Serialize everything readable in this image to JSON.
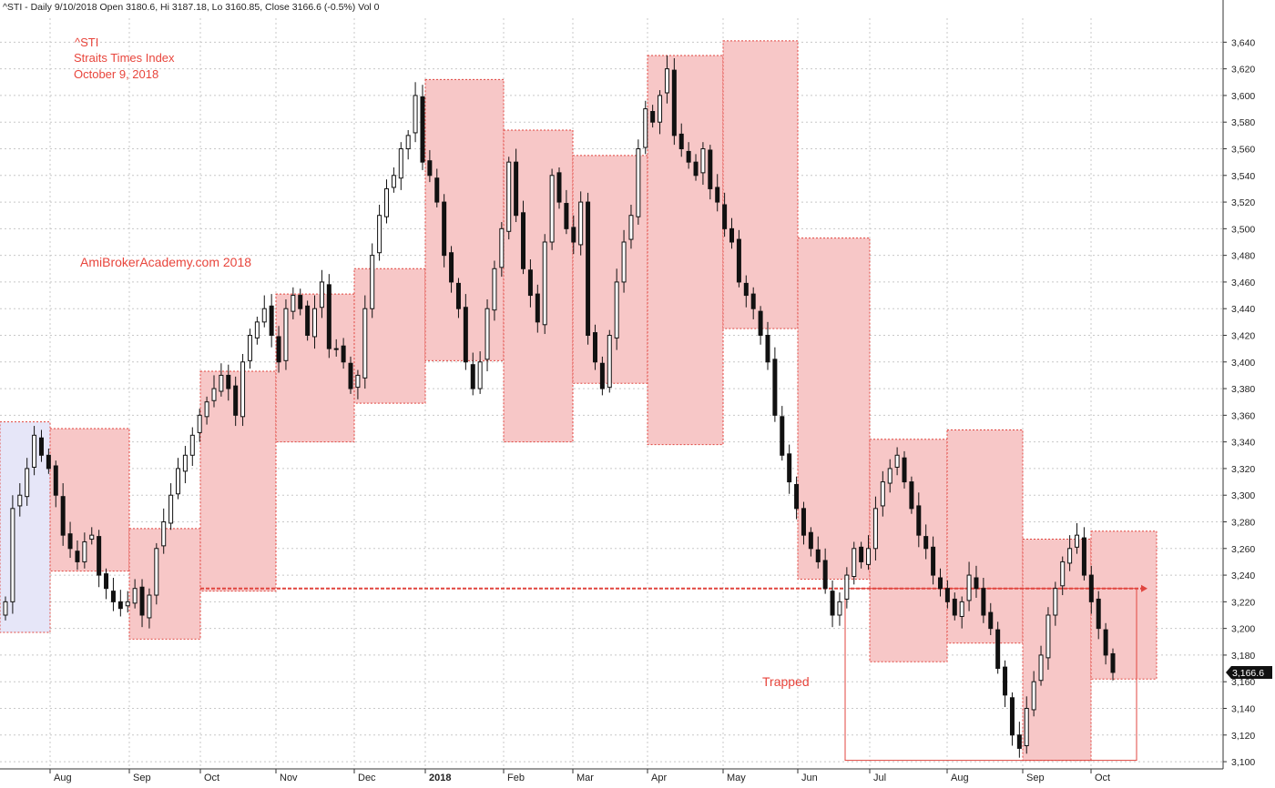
{
  "header_text": "^STI - Daily 9/10/2018 Open 3180.6, Hi 3187.18, Lo 3160.85, Close 3166.6 (-0.5%) Vol 0",
  "annotations": {
    "symbol": "^STI",
    "name": "Straits Times Index",
    "date": "October 9, 2018",
    "watermark": "AmiBrokerAcademy.com  2018",
    "trapped_label": "Trapped"
  },
  "last_price_label": "3,166.6",
  "colors": {
    "month_box_fill": "#f7c7c7",
    "month_box_stroke": "#e0453f",
    "july_box_fill": "#e6e6f8",
    "annotation_text": "#e8453c",
    "candle": "#111111",
    "grid": "#c8c8c8",
    "axis": "#333333"
  },
  "chart_data": {
    "type": "candlestick",
    "title": "^STI Straits Times Index",
    "ylim": [
      3095,
      3675
    ],
    "y_ticks": [
      3100,
      3120,
      3140,
      3160,
      3180,
      3200,
      3220,
      3240,
      3260,
      3280,
      3300,
      3320,
      3340,
      3360,
      3380,
      3400,
      3420,
      3440,
      3460,
      3480,
      3500,
      3520,
      3540,
      3560,
      3580,
      3600,
      3620,
      3640
    ],
    "x_labels": [
      "Aug",
      "Sep",
      "Oct",
      "Nov",
      "Dec",
      "2018",
      "Feb",
      "Mar",
      "Apr",
      "May",
      "Jun",
      "Jul",
      "Aug",
      "Sep",
      "Oct"
    ],
    "month_ranges": [
      {
        "month": "Jul 2017",
        "high": 3355,
        "low": 3197
      },
      {
        "month": "Aug 2017",
        "high": 3350,
        "low": 3243
      },
      {
        "month": "Sep 2017",
        "high": 3275,
        "low": 3192
      },
      {
        "month": "Oct 2017",
        "high": 3393,
        "low": 3228
      },
      {
        "month": "Nov 2017",
        "high": 3451,
        "low": 3340
      },
      {
        "month": "Dec 2017",
        "high": 3470,
        "low": 3369
      },
      {
        "month": "Jan 2018",
        "high": 3612,
        "low": 3401
      },
      {
        "month": "Feb 2018",
        "high": 3574,
        "low": 3340
      },
      {
        "month": "Mar 2018",
        "high": 3555,
        "low": 3384
      },
      {
        "month": "Apr 2018",
        "high": 3630,
        "low": 3338
      },
      {
        "month": "May 2018",
        "high": 3641,
        "low": 3425
      },
      {
        "month": "Jun 2018",
        "high": 3493,
        "low": 3237
      },
      {
        "month": "Jul 2018",
        "high": 3342,
        "low": 3175
      },
      {
        "month": "Aug 2018",
        "high": 3349,
        "low": 3189
      },
      {
        "month": "Sep 2018",
        "high": 3267,
        "low": 3101
      },
      {
        "month": "Oct 2018",
        "high": 3273,
        "low": 3162
      }
    ],
    "reference_line": 3230,
    "closes": [
      3220,
      3290,
      3300,
      3320,
      3345,
      3330,
      3320,
      3300,
      3270,
      3260,
      3250,
      3265,
      3270,
      3240,
      3230,
      3220,
      3215,
      3220,
      3230,
      3210,
      3225,
      3260,
      3280,
      3300,
      3320,
      3330,
      3345,
      3360,
      3370,
      3380,
      3390,
      3380,
      3360,
      3400,
      3420,
      3430,
      3440,
      3420,
      3400,
      3440,
      3450,
      3440,
      3420,
      3440,
      3460,
      3410,
      3410,
      3400,
      3380,
      3390,
      3440,
      3480,
      3510,
      3530,
      3540,
      3560,
      3570,
      3600,
      3550,
      3540,
      3520,
      3480,
      3460,
      3440,
      3400,
      3380,
      3400,
      3440,
      3470,
      3500,
      3550,
      3510,
      3470,
      3450,
      3430,
      3490,
      3540,
      3520,
      3500,
      3490,
      3520,
      3420,
      3400,
      3380,
      3420,
      3460,
      3490,
      3510,
      3560,
      3590,
      3580,
      3600,
      3620,
      3570,
      3560,
      3550,
      3540,
      3560,
      3530,
      3520,
      3500,
      3490,
      3460,
      3450,
      3440,
      3420,
      3400,
      3360,
      3330,
      3310,
      3290,
      3270,
      3260,
      3250,
      3230,
      3210,
      3220,
      3240,
      3260,
      3250,
      3260,
      3290,
      3310,
      3320,
      3330,
      3310,
      3290,
      3270,
      3260,
      3240,
      3230,
      3220,
      3210,
      3220,
      3240,
      3230,
      3210,
      3200,
      3170,
      3150,
      3120,
      3110,
      3140,
      3160,
      3180,
      3210,
      3230,
      3250,
      3260,
      3270,
      3240,
      3220,
      3200,
      3180,
      3167
    ]
  }
}
